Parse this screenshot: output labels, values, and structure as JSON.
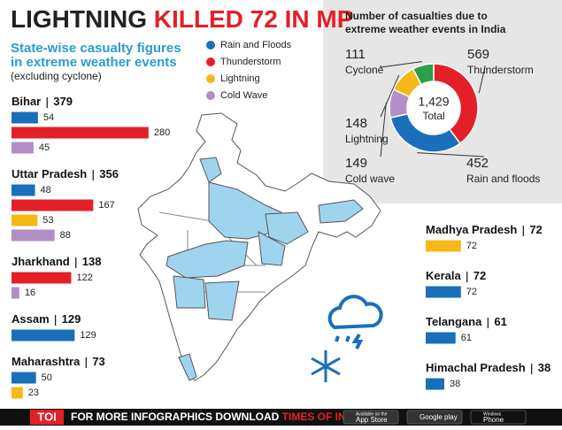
{
  "title": {
    "lead": "LIGHTNING",
    "highlight": "KILLED 72 IN MP"
  },
  "subtitle": [
    "State-wise casualty figures",
    "in extreme weather events"
  ],
  "note": "(excluding cyclone)",
  "chart_data": [
    {
      "type": "bar",
      "categories": [
        "Bihar",
        "Uttar Pradesh",
        "Jharkhand",
        "Assam",
        "Maharashtra",
        "Madhya Pradesh",
        "Kerala",
        "Telangana",
        "Himachal Pradesh"
      ],
      "totals": [
        379,
        356,
        138,
        129,
        73,
        72,
        72,
        61,
        38
      ],
      "series": [
        {
          "name": "Rain and Floods",
          "color": "#1a6fba",
          "values": [
            54,
            48,
            null,
            129,
            50,
            null,
            72,
            61,
            38
          ]
        },
        {
          "name": "Thunderstorm",
          "color": "#e32028",
          "values": [
            280,
            167,
            122,
            null,
            null,
            null,
            null,
            null,
            null
          ]
        },
        {
          "name": "Lightning",
          "color": "#f6b817",
          "values": [
            null,
            53,
            null,
            null,
            23,
            72,
            null,
            null,
            null
          ]
        },
        {
          "name": "Cold Wave",
          "color": "#b18fc6",
          "values": [
            45,
            88,
            16,
            null,
            null,
            null,
            null,
            null,
            null
          ]
        }
      ]
    },
    {
      "type": "pie",
      "title": [
        "Number of casualties due to",
        "extreme weather events in India"
      ],
      "categories": [
        "Thunderstorm",
        "Rain and floods",
        "Cold wave",
        "Lightning",
        "Cyclone"
      ],
      "values": [
        569,
        452,
        149,
        148,
        111
      ],
      "colors": [
        "#e32028",
        "#1a6fba",
        "#b18fc6",
        "#f6b817",
        "#2e9e48"
      ],
      "center_label": "1,429",
      "center_caption": "Total"
    }
  ],
  "footer": {
    "logo": "TOI",
    "text": "FOR MORE INFOGRAPHICS DOWNLOAD",
    "app": "TIMES OF INDIA APP",
    "badges": [
      {
        "small": "Available on the",
        "big": "App Store"
      },
      {
        "small": "",
        "big": "Google play"
      },
      {
        "small": "Windows",
        "big": "Phone"
      }
    ]
  }
}
